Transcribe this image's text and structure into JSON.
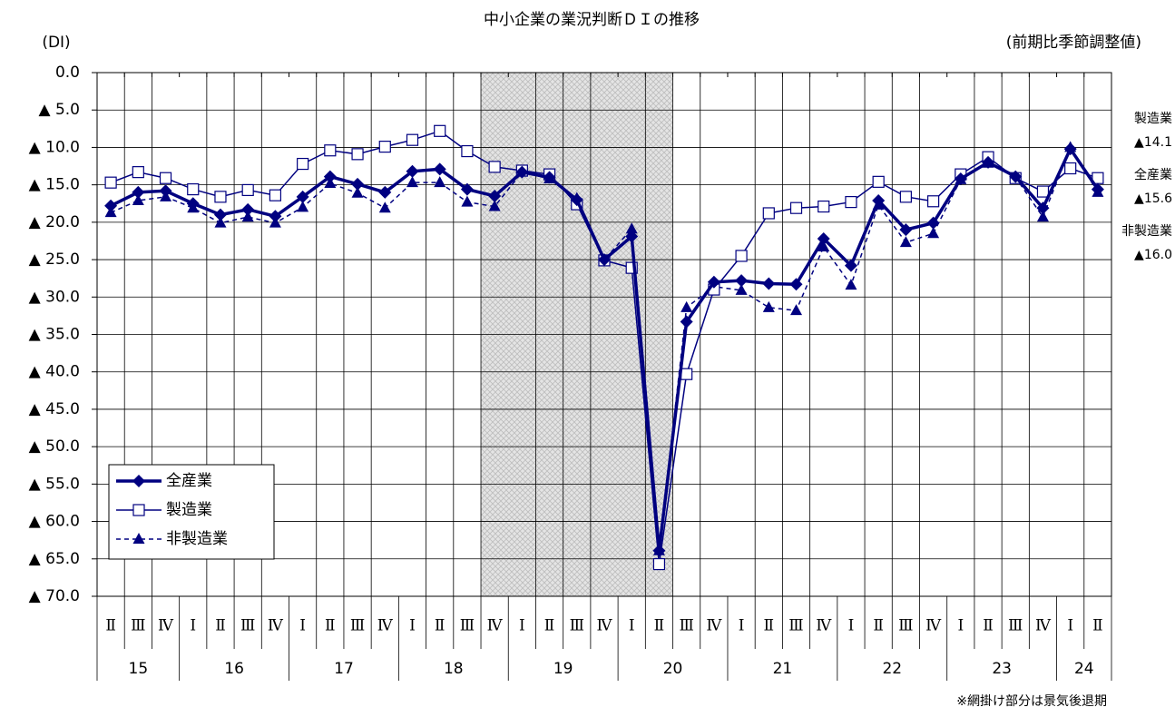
{
  "chart_data": {
    "type": "line",
    "title": "中小企業の業況判断ＤＩの推移",
    "y_unit_label": "(DI)",
    "subtitle": "(前期比季節調整値)",
    "note": "※網掛け部分は景気後退期",
    "groups": [
      {
        "label": "15",
        "quarters": [
          "Ⅱ",
          "Ⅲ",
          "Ⅳ"
        ]
      },
      {
        "label": "16",
        "quarters": [
          "Ⅰ",
          "Ⅱ",
          "Ⅲ",
          "Ⅳ"
        ]
      },
      {
        "label": "17",
        "quarters": [
          "Ⅰ",
          "Ⅱ",
          "Ⅲ",
          "Ⅳ"
        ]
      },
      {
        "label": "18",
        "quarters": [
          "Ⅰ",
          "Ⅱ",
          "Ⅲ",
          "Ⅳ"
        ]
      },
      {
        "label": "19",
        "quarters": [
          "Ⅰ",
          "Ⅱ",
          "Ⅲ",
          "Ⅳ"
        ]
      },
      {
        "label": "20",
        "quarters": [
          "Ⅰ",
          "Ⅱ",
          "Ⅲ",
          "Ⅳ"
        ]
      },
      {
        "label": "21",
        "quarters": [
          "Ⅰ",
          "Ⅱ",
          "Ⅲ",
          "Ⅳ"
        ]
      },
      {
        "label": "22",
        "quarters": [
          "Ⅰ",
          "Ⅱ",
          "Ⅲ",
          "Ⅳ"
        ]
      },
      {
        "label": "23",
        "quarters": [
          "Ⅰ",
          "Ⅱ",
          "Ⅲ",
          "Ⅳ"
        ]
      },
      {
        "label": "24",
        "quarters": [
          "Ⅰ",
          "Ⅱ"
        ]
      }
    ],
    "shaded": [
      false,
      false,
      false,
      false,
      false,
      false,
      false,
      false,
      false,
      false,
      false,
      false,
      false,
      false,
      true,
      true,
      true,
      true,
      true,
      true,
      true,
      false,
      false,
      false,
      false,
      false,
      false,
      false,
      false,
      false,
      false,
      false,
      false,
      false,
      false,
      false,
      false
    ],
    "ylim": [
      -70,
      0
    ],
    "yticks": [
      {
        "value": 0,
        "label": "0.0"
      },
      {
        "value": -5,
        "label": "▲ 5.0"
      },
      {
        "value": -10,
        "label": "▲ 10.0"
      },
      {
        "value": -15,
        "label": "▲ 15.0"
      },
      {
        "value": -20,
        "label": "▲ 20.0"
      },
      {
        "value": -25,
        "label": "▲ 25.0"
      },
      {
        "value": -30,
        "label": "▲ 30.0"
      },
      {
        "value": -35,
        "label": "▲ 35.0"
      },
      {
        "value": -40,
        "label": "▲ 40.0"
      },
      {
        "value": -45,
        "label": "▲ 45.0"
      },
      {
        "value": -50,
        "label": "▲ 50.0"
      },
      {
        "value": -55,
        "label": "▲ 55.0"
      },
      {
        "value": -60,
        "label": "▲ 60.0"
      },
      {
        "value": -65,
        "label": "▲ 65.0"
      },
      {
        "value": -70,
        "label": "▲ 70.0"
      }
    ],
    "grid": true,
    "series": [
      {
        "name": "全産業",
        "color": "#000080",
        "marker": "diamond",
        "dashed": false,
        "width": 3.5,
        "values": [
          -17.8,
          -16.0,
          -15.8,
          -17.5,
          -19.0,
          -18.3,
          -19.2,
          -16.6,
          -13.9,
          -14.9,
          -16.0,
          -13.2,
          -12.9,
          -15.6,
          -16.5,
          -13.3,
          -14.0,
          -17.0,
          -25.0,
          -21.9,
          -63.9,
          -33.3,
          -28.0,
          -27.8,
          -28.2,
          -28.3,
          -22.2,
          -25.8,
          -17.1,
          -21.0,
          -20.1,
          -14.2,
          -12.0,
          -13.9,
          -18.1,
          -10.2,
          -15.6
        ]
      },
      {
        "name": "製造業",
        "color": "#000080",
        "marker": "square",
        "dashed": false,
        "width": 1.5,
        "values": [
          -14.7,
          -13.3,
          -14.1,
          -15.6,
          -16.6,
          -15.7,
          -16.4,
          -12.2,
          -10.4,
          -10.9,
          -9.9,
          -9.0,
          -7.8,
          -10.5,
          -12.6,
          -13.1,
          -13.6,
          -17.6,
          -25.1,
          -26.1,
          -65.7,
          -40.3,
          -29.0,
          -24.5,
          -18.8,
          -18.1,
          -17.9,
          -17.3,
          -14.6,
          -16.6,
          -17.2,
          -13.6,
          -11.3,
          -14.1,
          -15.9,
          -12.8,
          -14.1
        ]
      },
      {
        "name": "非製造業",
        "color": "#000080",
        "marker": "triangle",
        "dashed": true,
        "width": 1.5,
        "values": [
          -18.7,
          -17.1,
          -16.6,
          -18.1,
          -20.1,
          -19.3,
          -20.1,
          -18.0,
          -14.8,
          -16.1,
          -18.1,
          -14.7,
          -14.7,
          -17.3,
          -17.9,
          -13.3,
          -14.2,
          -16.8,
          -25.0,
          -20.9,
          -63.9,
          -31.4,
          -28.6,
          -29.1,
          -31.4,
          -31.8,
          -23.3,
          -28.4,
          -17.7,
          -22.7,
          -21.5,
          -14.3,
          -12.1,
          -14.0,
          -19.3,
          -10.0,
          -16.0
        ]
      }
    ],
    "end_labels": [
      {
        "name": "製造業",
        "label": "▲14.1"
      },
      {
        "name": "全産業",
        "label": "▲15.6"
      },
      {
        "name": "非製造業",
        "label": "▲16.0"
      }
    ]
  }
}
